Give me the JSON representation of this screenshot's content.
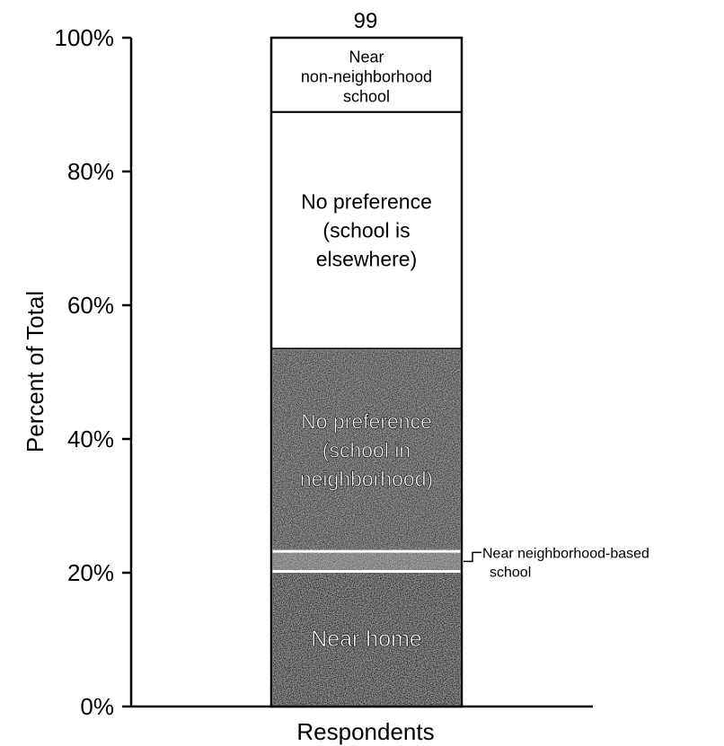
{
  "chart_data": {
    "type": "bar",
    "stacked": true,
    "categories": [
      "Respondents"
    ],
    "total_label": "99",
    "ylabel": "Percent of Total",
    "xlabel": "",
    "ylim": [
      0,
      100
    ],
    "yticks": [
      "0%",
      "20%",
      "40%",
      "60%",
      "80%",
      "100%"
    ],
    "ytick_values": [
      0,
      20,
      40,
      60,
      80,
      100
    ],
    "series": [
      {
        "name": "Near home",
        "values": [
          20.2
        ],
        "label_lines": [
          "Near home"
        ],
        "fill": "#2a2a2a"
      },
      {
        "name": "Near neighborhood-based school",
        "values": [
          3.0
        ],
        "label_lines": [
          "Near neighborhood-based",
          "school"
        ],
        "fill": "#6a6a6a"
      },
      {
        "name": "No preference (school in neighborhood)",
        "values": [
          30.3
        ],
        "label_lines": [
          "No preference",
          "(school in",
          "neighborhood)"
        ],
        "fill": "#3c3c3c"
      },
      {
        "name": "No preference (school is elsewhere)",
        "values": [
          35.4
        ],
        "label_lines": [
          "No preference",
          "(school is",
          "elsewhere)"
        ],
        "fill": "#ffffff"
      },
      {
        "name": "Near non-neighborhood school",
        "values": [
          11.1
        ],
        "label_lines": [
          "Near",
          "non-neighborhood",
          "school"
        ],
        "fill": "#ffffff"
      }
    ]
  }
}
